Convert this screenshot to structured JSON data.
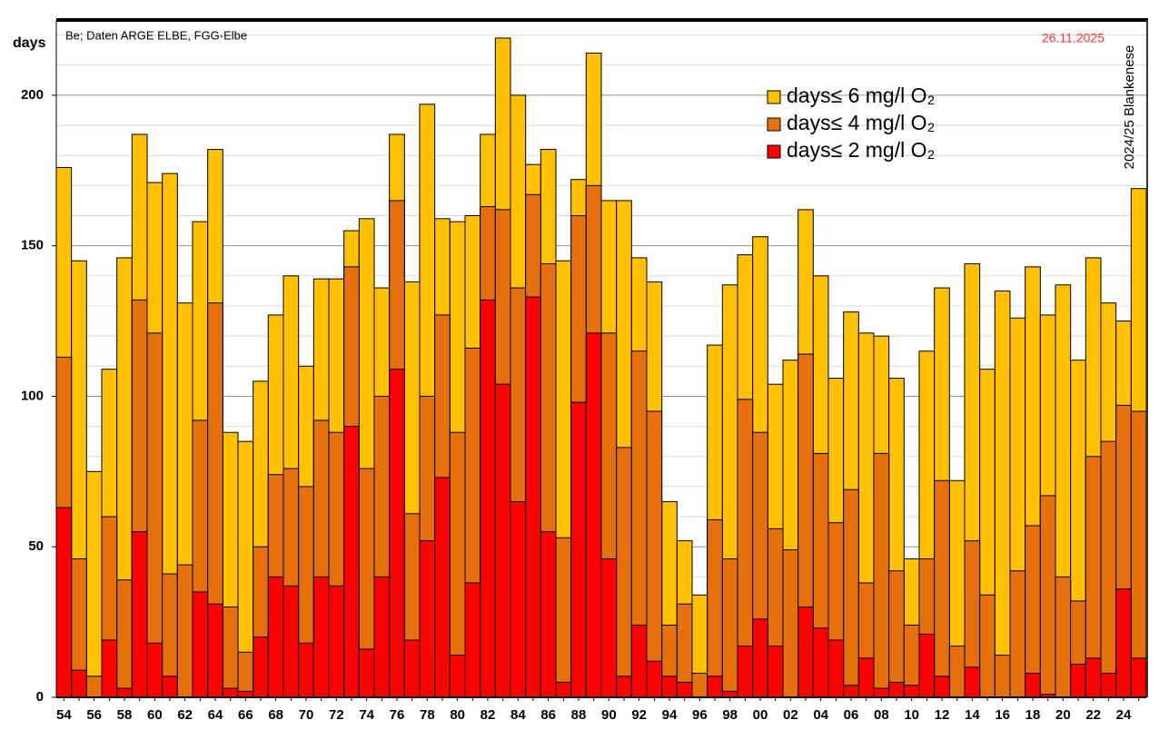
{
  "chart_data": {
    "type": "bar",
    "mode": "overlap",
    "y_label": "days",
    "note": "Be; Daten ARGE ELBE, FGG-Elbe",
    "date": "26.11.2025",
    "station": "2024/25  Blankenese",
    "categories": [
      "54",
      null,
      "56",
      null,
      "58",
      null,
      "60",
      null,
      "62",
      null,
      "64",
      null,
      "66",
      null,
      "68",
      null,
      "70",
      null,
      "72",
      null,
      "74",
      null,
      "76",
      null,
      "78",
      null,
      "80",
      null,
      "82",
      null,
      "84",
      null,
      "86",
      null,
      "88",
      null,
      "90",
      null,
      "92",
      null,
      "94",
      null,
      "96",
      null,
      "98",
      null,
      "00",
      null,
      "02",
      null,
      "04",
      null,
      "06",
      null,
      "08",
      null,
      "10",
      null,
      "12",
      null,
      "14",
      null,
      "16",
      null,
      "18",
      null,
      "20",
      null,
      "22",
      null,
      "24",
      null
    ],
    "series": [
      {
        "name": "days≤ 6  mg/l O₂",
        "color": "#ffc000",
        "values": [
          176,
          145,
          75,
          109,
          146,
          187,
          171,
          174,
          131,
          158,
          182,
          88,
          85,
          105,
          127,
          140,
          110,
          139,
          139,
          155,
          159,
          136,
          187,
          138,
          197,
          159,
          158,
          160,
          187,
          219,
          200,
          177,
          182,
          145,
          172,
          214,
          165,
          165,
          146,
          138,
          65,
          52,
          34,
          117,
          137,
          147,
          153,
          104,
          112,
          162,
          140,
          106,
          128,
          121,
          120,
          106,
          46,
          115,
          136,
          72,
          144,
          109,
          135,
          126,
          143,
          127,
          137,
          112,
          146,
          131,
          125,
          169
        ]
      },
      {
        "name": "days≤ 4  mg/l O₂",
        "color": "#e5700c",
        "values": [
          113,
          46,
          7,
          60,
          39,
          132,
          121,
          41,
          44,
          92,
          131,
          30,
          15,
          50,
          74,
          76,
          70,
          92,
          88,
          143,
          76,
          100,
          165,
          61,
          100,
          127,
          88,
          116,
          163,
          162,
          136,
          167,
          144,
          53,
          160,
          170,
          121,
          83,
          115,
          95,
          24,
          31,
          8,
          59,
          46,
          99,
          88,
          56,
          49,
          114,
          81,
          58,
          69,
          38,
          81,
          42,
          24,
          46,
          72,
          17,
          52,
          34,
          14,
          42,
          57,
          67,
          40,
          32,
          80,
          85,
          97,
          95
        ]
      },
      {
        "name": "days≤ 2  mg/l O₂",
        "color": "#ff0000",
        "values": [
          63,
          9,
          0,
          19,
          3,
          55,
          18,
          7,
          0,
          35,
          31,
          3,
          2,
          20,
          40,
          37,
          18,
          40,
          37,
          90,
          16,
          40,
          109,
          19,
          52,
          73,
          14,
          38,
          132,
          104,
          65,
          133,
          55,
          5,
          98,
          121,
          46,
          7,
          24,
          12,
          7,
          5,
          0,
          7,
          2,
          17,
          26,
          17,
          0,
          30,
          23,
          19,
          4,
          13,
          3,
          5,
          4,
          21,
          7,
          0,
          10,
          0,
          0,
          0,
          8,
          1,
          0,
          11,
          13,
          8,
          36,
          13
        ]
      }
    ],
    "ylim": [
      0,
      225
    ],
    "yticks": [
      0,
      50,
      100,
      150,
      200
    ],
    "minor_yticks": [
      10,
      20,
      30,
      40,
      60,
      70,
      80,
      90,
      110,
      120,
      130,
      140,
      160,
      170,
      180,
      190,
      210,
      220
    ],
    "grid": true
  }
}
